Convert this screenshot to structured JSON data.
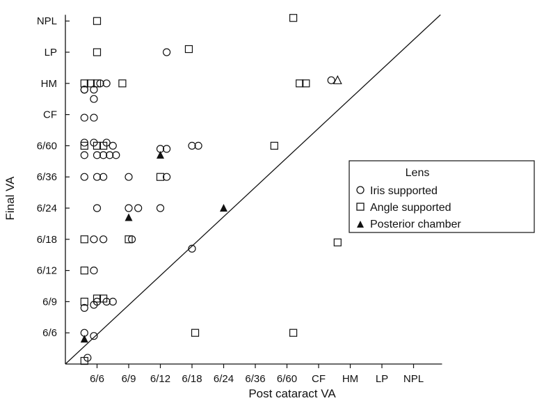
{
  "chart_data": {
    "type": "scatter",
    "xlabel": "Post cataract VA",
    "ylabel": "Final VA",
    "x_categories": [
      "6/6",
      "6/9",
      "6/12",
      "6/18",
      "6/24",
      "6/36",
      "6/60",
      "CF",
      "HM",
      "LP",
      "NPL"
    ],
    "y_categories": [
      "6/6",
      "6/9",
      "6/12",
      "6/18",
      "6/24",
      "6/36",
      "6/60",
      "CF",
      "HM",
      "LP",
      "NPL"
    ],
    "grid": false,
    "diagonal_reference_line": true,
    "legend": {
      "title": "Lens",
      "placement": "right-middle",
      "entries": [
        "Iris supported",
        "Angle supported",
        "Posterior chamber"
      ]
    },
    "series": [
      {
        "name": "Iris supported",
        "marker": "open-circle",
        "points": [
          [
            0.7,
            0.2
          ],
          [
            0.9,
            0.9
          ],
          [
            0.9,
            1.9
          ],
          [
            0.9,
            3.0
          ],
          [
            0.9,
            4.0
          ],
          [
            0.9,
            7.1
          ],
          [
            0.9,
            7.9
          ],
          [
            0.9,
            8.5
          ],
          [
            0.6,
            8.8
          ],
          [
            0.9,
            8.8
          ],
          [
            1.1,
            9.0
          ],
          [
            0.6,
            1.0
          ],
          [
            0.6,
            1.8
          ],
          [
            0.6,
            6.0
          ],
          [
            0.6,
            6.7
          ],
          [
            0.6,
            7.1
          ],
          [
            0.6,
            7.9
          ],
          [
            0.6,
            8.8
          ],
          [
            1.0,
            2.0
          ],
          [
            1.3,
            2.0
          ],
          [
            1.5,
            2.0
          ],
          [
            1.2,
            4.0
          ],
          [
            1.2,
            6.0
          ],
          [
            1.0,
            5.0
          ],
          [
            1.0,
            6.0
          ],
          [
            1.0,
            6.7
          ],
          [
            1.2,
            6.7
          ],
          [
            1.4,
            6.7
          ],
          [
            1.6,
            6.7
          ],
          [
            1.3,
            7.1
          ],
          [
            1.5,
            7.0
          ],
          [
            1.3,
            9.0
          ],
          [
            2.0,
            6.0
          ],
          [
            2.1,
            4.0
          ],
          [
            2.0,
            5.0
          ],
          [
            2.3,
            5.0
          ],
          [
            3.0,
            5.0
          ],
          [
            3.2,
            6.0
          ],
          [
            3.0,
            6.9
          ],
          [
            3.2,
            6.9
          ],
          [
            3.2,
            10.0
          ],
          [
            4.0,
            3.7
          ],
          [
            4.0,
            7.0
          ],
          [
            4.2,
            7.0
          ],
          [
            8.4,
            9.1
          ]
        ]
      },
      {
        "name": "Angle supported",
        "marker": "open-square",
        "points": [
          [
            0.6,
            0.1
          ],
          [
            0.6,
            2.0
          ],
          [
            0.6,
            3.0
          ],
          [
            0.6,
            4.0
          ],
          [
            0.6,
            7.0
          ],
          [
            0.6,
            9.0
          ],
          [
            0.8,
            9.0
          ],
          [
            1.0,
            2.1
          ],
          [
            1.2,
            2.1
          ],
          [
            1.0,
            7.0
          ],
          [
            1.2,
            7.0
          ],
          [
            1.0,
            9.0
          ],
          [
            1.0,
            10.0
          ],
          [
            1.0,
            11.0
          ],
          [
            1.8,
            9.0
          ],
          [
            2.0,
            4.0
          ],
          [
            3.0,
            6.0
          ],
          [
            3.9,
            10.1
          ],
          [
            4.1,
            1.0
          ],
          [
            6.6,
            7.0
          ],
          [
            7.2,
            1.0
          ],
          [
            7.4,
            9.0
          ],
          [
            7.6,
            9.0
          ],
          [
            7.2,
            11.1
          ],
          [
            8.6,
            3.9
          ]
        ]
      },
      {
        "name": "Posterior chamber",
        "marker": "filled-triangle",
        "points": [
          [
            0.6,
            0.8
          ],
          [
            2.0,
            4.7
          ],
          [
            3.0,
            6.7
          ],
          [
            5.0,
            5.0
          ]
        ]
      },
      {
        "name": "",
        "marker": "open-triangle",
        "points": [
          [
            8.6,
            9.1
          ]
        ]
      }
    ]
  }
}
